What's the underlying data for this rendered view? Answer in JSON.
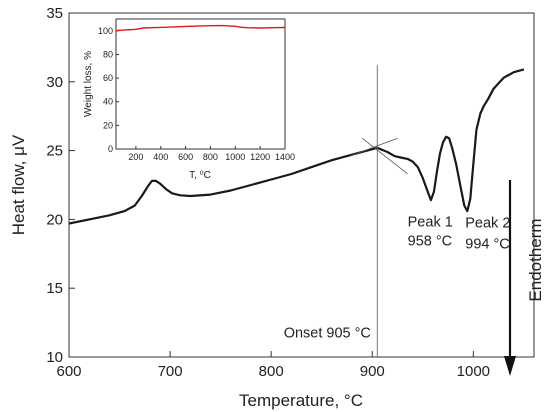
{
  "chart_data": [
    {
      "type": "line",
      "xlabel": "Temperature, °C",
      "ylabel": "Heat flow, μV",
      "xlim": [
        600,
        1060
      ],
      "ylim": [
        10,
        35
      ],
      "xticks": [
        600,
        700,
        800,
        900,
        1000
      ],
      "yticks": [
        10,
        15,
        20,
        25,
        30,
        35
      ],
      "grid": false,
      "line_color": "#1a1a1a",
      "series": [
        {
          "x": [
            600,
            620,
            640,
            655,
            665,
            672,
            678,
            682,
            686,
            690,
            696,
            702,
            710,
            720,
            740,
            760,
            780,
            800,
            820,
            840,
            860,
            880,
            895,
            905,
            915,
            922,
            928,
            935,
            940,
            945,
            950,
            954,
            958,
            961,
            964,
            967,
            970,
            973,
            976,
            979,
            983,
            987,
            991,
            994,
            997,
            1000,
            1003,
            1007,
            1010,
            1015,
            1020,
            1025,
            1030,
            1040,
            1050
          ],
          "y": [
            19.7,
            20.0,
            20.3,
            20.6,
            21.0,
            21.7,
            22.4,
            22.8,
            22.8,
            22.6,
            22.2,
            21.9,
            21.75,
            21.7,
            21.8,
            22.1,
            22.5,
            22.9,
            23.3,
            23.8,
            24.3,
            24.7,
            25.0,
            25.2,
            24.9,
            24.6,
            24.5,
            24.4,
            24.2,
            23.8,
            23.0,
            22.2,
            21.4,
            22.0,
            23.5,
            24.8,
            25.6,
            26.0,
            25.9,
            25.2,
            24.0,
            22.5,
            21.0,
            20.6,
            21.5,
            24.0,
            26.5,
            27.7,
            28.2,
            28.8,
            29.5,
            29.9,
            30.3,
            30.7,
            30.9
          ]
        }
      ],
      "annotations": {
        "onset_line_x": 905,
        "onset_label": "Onset 905 °C",
        "peak1_line1": "Peak 1",
        "peak1_line2": "958 °C",
        "peak2_line1": "Peak 2",
        "peak2_line2": "994 °C",
        "arrow_label": "Endotherm"
      }
    },
    {
      "type": "line",
      "xlabel": "T, ⁰C",
      "ylabel": "Weight loss, %",
      "xlim": [
        40,
        1400
      ],
      "ylim": [
        0,
        110
      ],
      "xticks": [
        200,
        400,
        600,
        800,
        1000,
        1200,
        1400
      ],
      "yticks": [
        0,
        20,
        40,
        60,
        80,
        100
      ],
      "grid": false,
      "line_color": "#e01818",
      "series": [
        {
          "x": [
            40,
            100,
            200,
            260,
            320,
            400,
            500,
            600,
            700,
            800,
            900,
            950,
            1000,
            1050,
            1100,
            1200,
            1300,
            1400
          ],
          "y": [
            100.2,
            100.6,
            101.3,
            102.4,
            102.6,
            102.9,
            103.3,
            103.7,
            104.0,
            104.3,
            104.4,
            104.2,
            103.8,
            103.0,
            102.6,
            102.4,
            102.6,
            102.8
          ]
        }
      ]
    }
  ]
}
